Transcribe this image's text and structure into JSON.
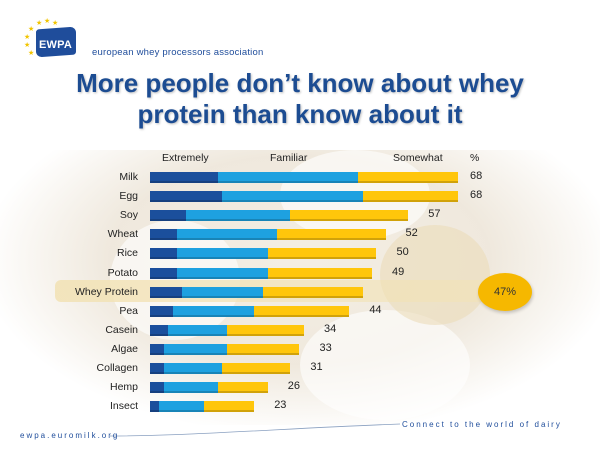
{
  "header": {
    "logo_text": "EWPA",
    "association": "european whey processors association"
  },
  "title": "More people don’t know about whey protein than know about it",
  "title_lines": [
    "More people don’t know about whey",
    "protein than know about it"
  ],
  "legend": {
    "extremely": "Extremely",
    "familiar": "Familiar",
    "somewhat": "Somewhat",
    "percent": "%"
  },
  "callout": "47%",
  "footer": {
    "url": "ewpa.euromilk.org",
    "tagline": "Connect to the world of dairy"
  },
  "colors": {
    "extremely": "#1b4f9c",
    "familiar": "#1ea1e0",
    "somewhat": "#ffc60b",
    "title": "#1c4c92"
  },
  "chart_data": {
    "type": "bar",
    "orientation": "horizontal",
    "stacked": true,
    "title": "More people don’t know about whey protein than know about it",
    "categories": [
      "Milk",
      "Egg",
      "Soy",
      "Wheat",
      "Rice",
      "Potato",
      "Whey Protein",
      "Pea",
      "Casein",
      "Algae",
      "Collagen",
      "Hemp",
      "Insect"
    ],
    "series": [
      {
        "name": "Extremely",
        "values": [
          15,
          16,
          8,
          6,
          6,
          6,
          7,
          5,
          4,
          3,
          3,
          3,
          2
        ]
      },
      {
        "name": "Familiar",
        "values": [
          31,
          31,
          23,
          22,
          20,
          20,
          18,
          18,
          13,
          14,
          13,
          12,
          10
        ]
      },
      {
        "name": "Somewhat",
        "values": [
          22,
          21,
          26,
          24,
          24,
          23,
          22,
          21,
          17,
          16,
          15,
          11,
          11
        ]
      }
    ],
    "totals": [
      68,
      68,
      57,
      52,
      50,
      49,
      null,
      44,
      34,
      33,
      31,
      26,
      23
    ],
    "highlight": {
      "category": "Whey Protein",
      "label": "47%"
    },
    "xlim": [
      0,
      70
    ],
    "legend_position": "top",
    "grid": false
  }
}
